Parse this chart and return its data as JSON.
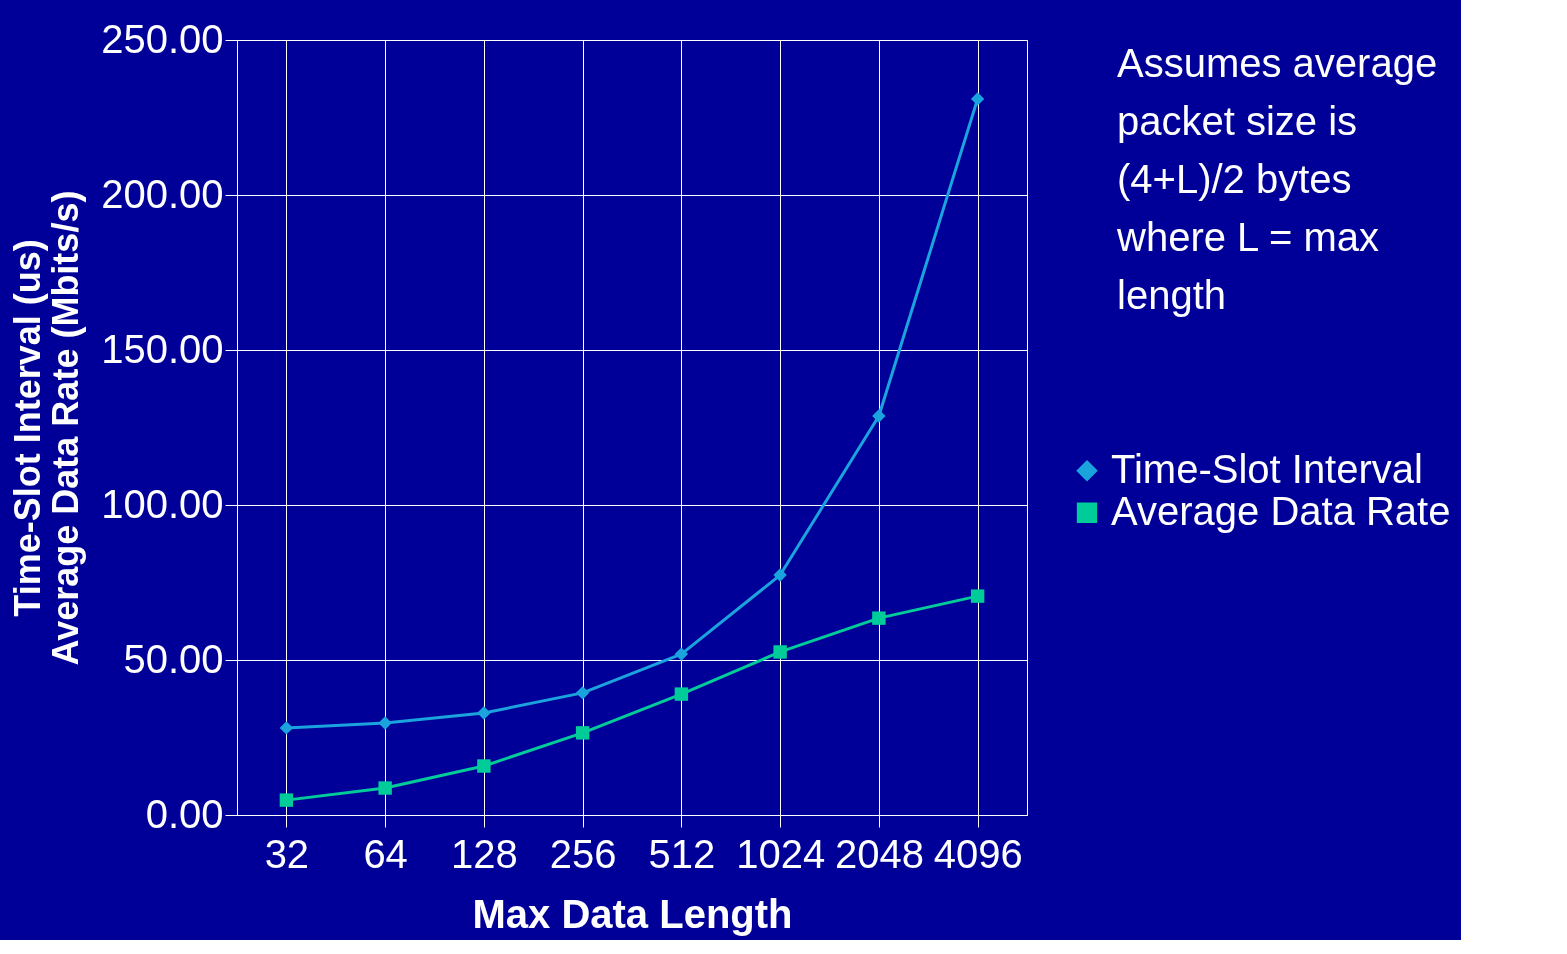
{
  "chart_data": {
    "type": "line",
    "xlabel": "Max Data Length",
    "ylabel": "Time-Slot Interval  (us)\nAverage Data Rate (Mbits/s)",
    "categories": [
      "32",
      "64",
      "128",
      "256",
      "512",
      "1024",
      "2048",
      "4096"
    ],
    "series": [
      {
        "name": "Time-Slot Interval",
        "color": "#1aa3dc",
        "marker": "diamond",
        "values": [
          28.1,
          29.7,
          32.9,
          39.4,
          51.9,
          77.4,
          128.7,
          231.0
        ]
      },
      {
        "name": "Average Data Rate",
        "color": "#00cc99",
        "marker": "square",
        "values": [
          4.8,
          8.7,
          15.8,
          26.5,
          39.0,
          52.6,
          63.5,
          70.6
        ]
      }
    ],
    "ylim": [
      0,
      250
    ],
    "yticks": [
      {
        "value": 0,
        "label": "0.00"
      },
      {
        "value": 50,
        "label": "50.00"
      },
      {
        "value": 100,
        "label": "100.00"
      },
      {
        "value": 150,
        "label": "150.00"
      },
      {
        "value": 200,
        "label": "200.00"
      },
      {
        "value": 250,
        "label": "250.00"
      }
    ],
    "grid": true,
    "legend": "right",
    "annotations": [
      "Assumes average\npacket size is\n(4+L)/2 bytes\nwhere L = max\nlength"
    ]
  }
}
